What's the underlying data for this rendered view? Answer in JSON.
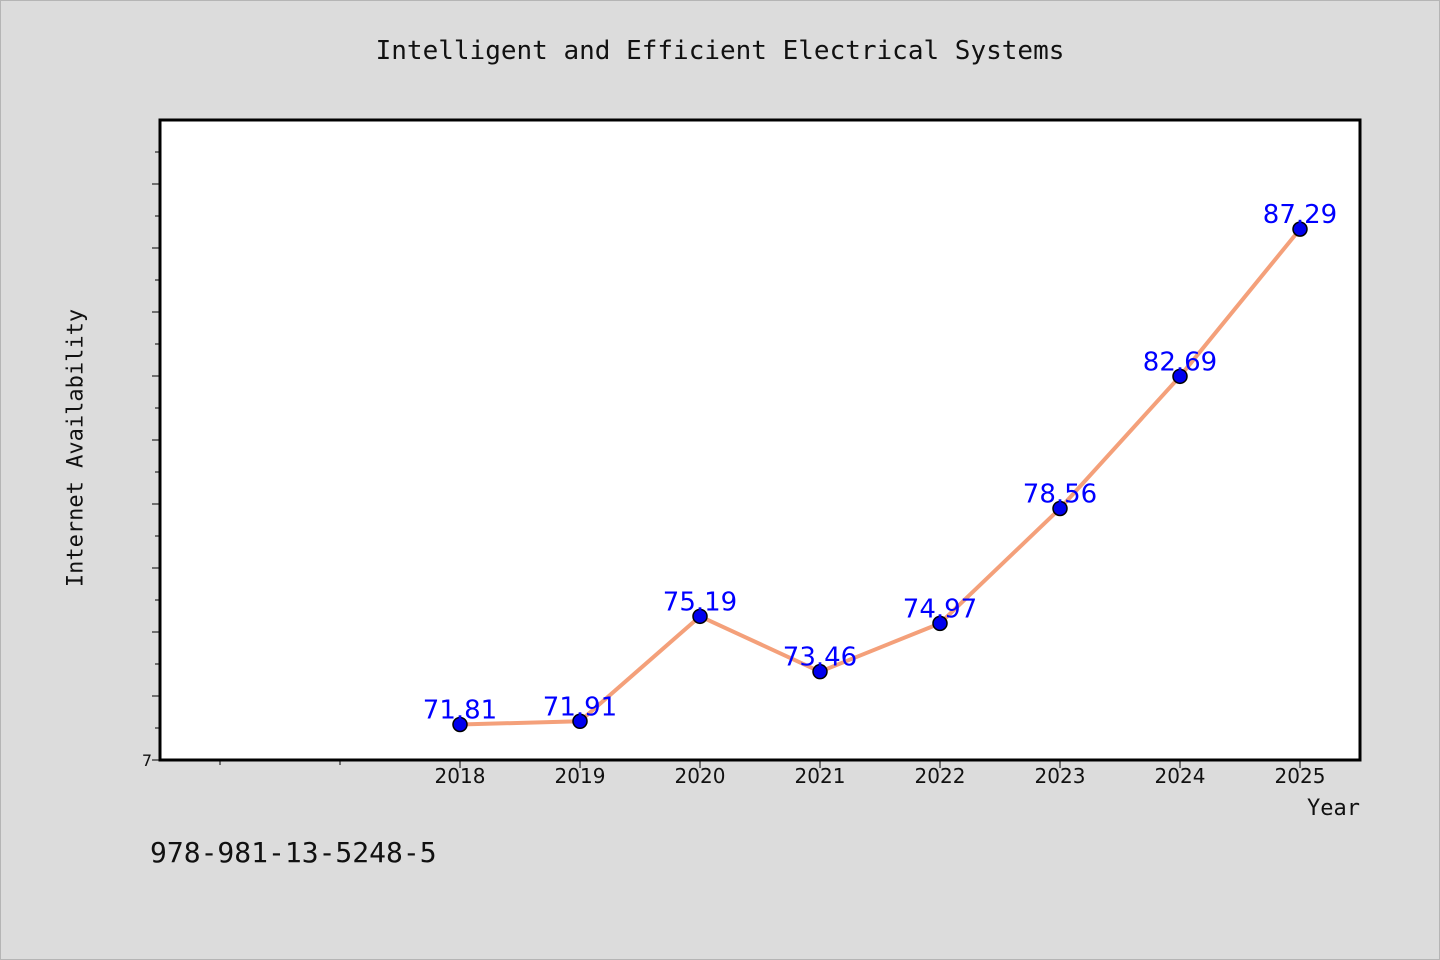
{
  "chart_data": {
    "type": "line",
    "title": "Intelligent and Efficient Electrical Systems",
    "xlabel": "Year",
    "ylabel": "Internet Availability",
    "x": [
      "2018",
      "2019",
      "2020",
      "2021",
      "2022",
      "2023",
      "2024",
      "2025"
    ],
    "series": [
      {
        "values": [
          71.81,
          71.91,
          75.19,
          73.46,
          74.97,
          78.56,
          82.69,
          87.29
        ]
      }
    ],
    "data_labels": [
      "71.81",
      "71.91",
      "75.19",
      "73.46",
      "74.97",
      "78.56",
      "82.69",
      "87.29"
    ],
    "y_tick_labels": [
      "7"
    ],
    "line_color": "#f4a07a",
    "marker_color": "#0000ee",
    "label_color": "#0000ff",
    "grid": false,
    "legend": "none"
  },
  "footer_text": "978-981-13-5248-5"
}
